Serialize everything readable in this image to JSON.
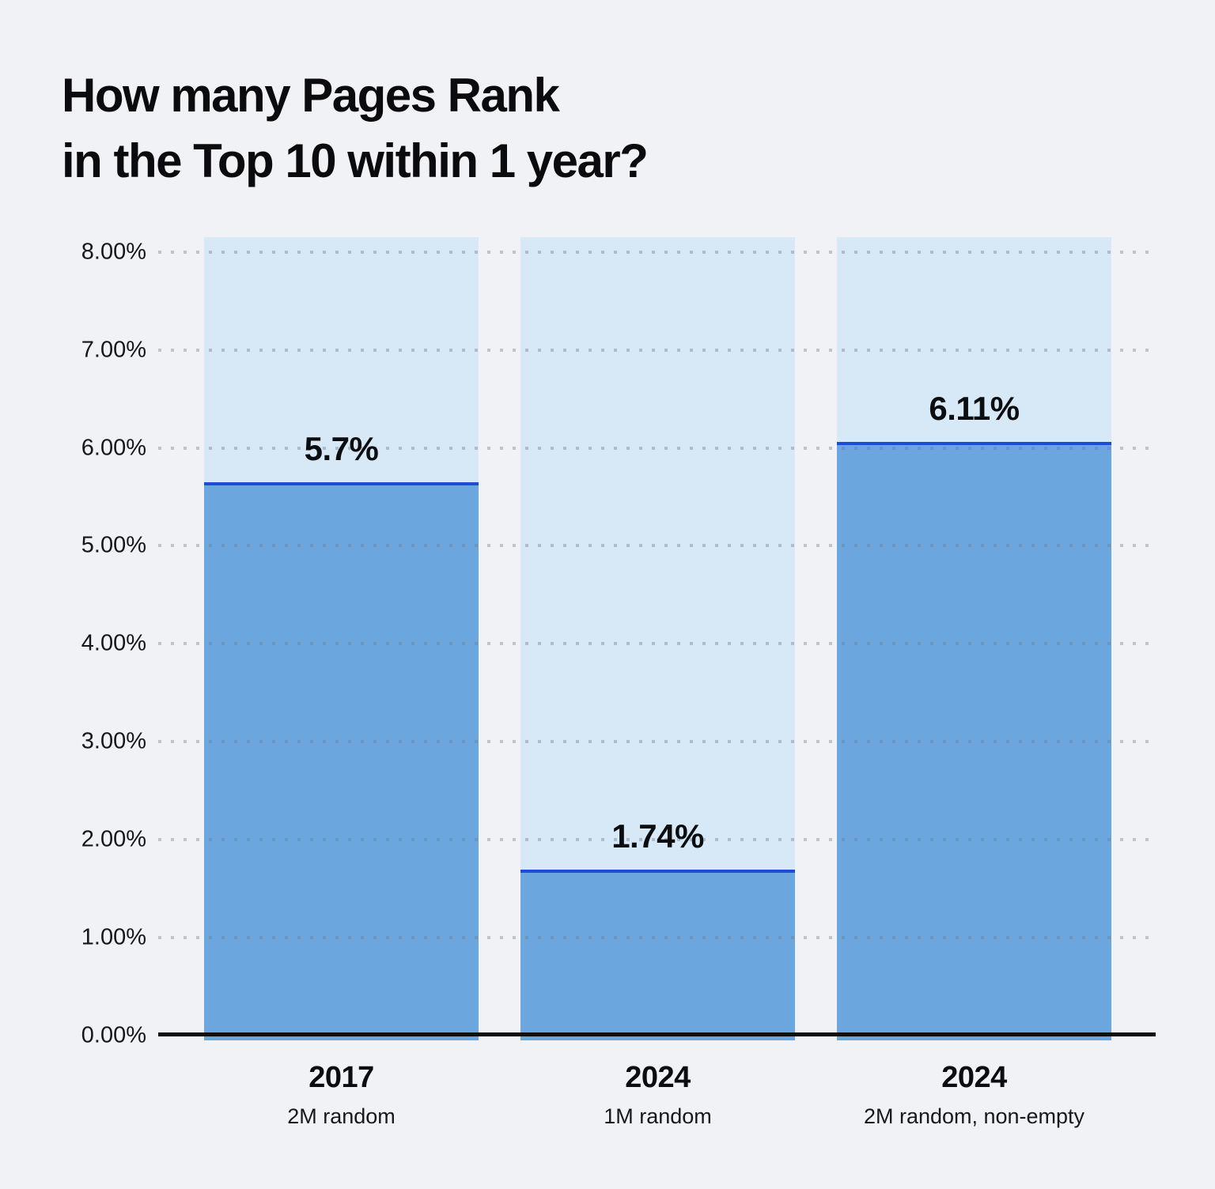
{
  "title": {
    "line1": "How many Pages Rank",
    "line2": "in the Top 10 within 1 year?"
  },
  "chart_data": {
    "type": "bar",
    "title": "How many Pages Rank in the Top 10 within 1 year?",
    "categories": [
      "2017",
      "2024",
      "2024"
    ],
    "category_sublabels": [
      "2M random",
      "1M random",
      "2M random, non-empty"
    ],
    "values": [
      5.7,
      1.74,
      6.11
    ],
    "value_labels": [
      "5.7%",
      "1.74%",
      "6.11%"
    ],
    "xlabel": "",
    "ylabel": "",
    "ylim": [
      0,
      8.2
    ],
    "yticks": [
      0,
      1,
      2,
      3,
      4,
      5,
      6,
      7,
      8
    ],
    "ytick_labels": [
      "0.00%",
      "1.00%",
      "2.00%",
      "3.00%",
      "4.00%",
      "5.00%",
      "6.00%",
      "7.00%",
      "8.00%"
    ],
    "grid": "horizontal-dotted",
    "legend": "none",
    "colors": {
      "page_background": "#f0f2f5",
      "column_background": "#d7e8f7",
      "bar_fill": "#6ca6de",
      "bar_top_line": "#1c4dd6",
      "grid_dot": "#9aa3b0",
      "axis_line": "#0d0e10",
      "text": "#0c0d0f"
    }
  }
}
